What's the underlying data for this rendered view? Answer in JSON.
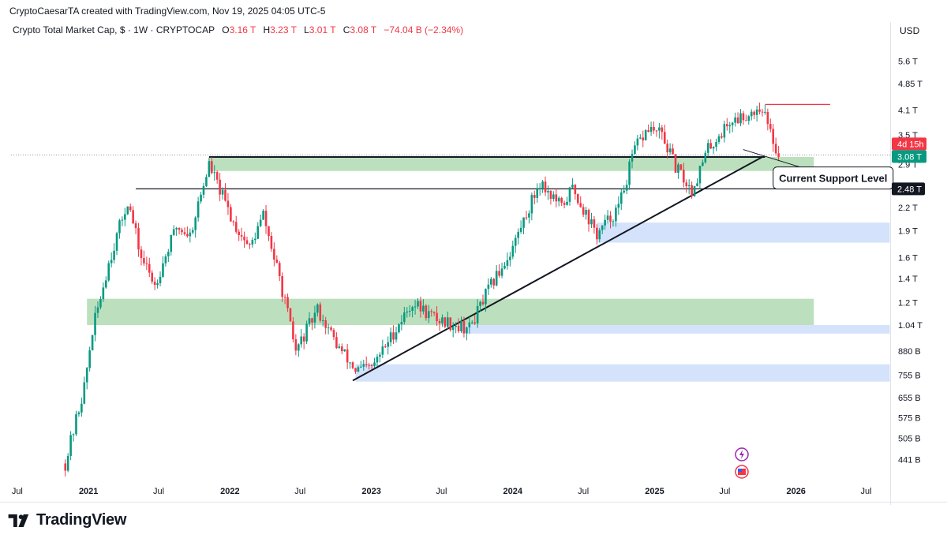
{
  "header": {
    "attribution": "CryptoCaesarTA created with TradingView.com, Nov 19, 2025 04:05 UTC-5"
  },
  "legend": {
    "symbol": "Crypto Total Market Cap, $ · 1W · CRYPTOCAP",
    "open_label": "O",
    "open": "3.16 T",
    "high_label": "H",
    "high": "3.23 T",
    "low_label": "L",
    "low": "3.01 T",
    "close_label": "C",
    "close": "3.08 T",
    "change": "−74.04 B (−2.34%)"
  },
  "currency": "USD",
  "brand": {
    "name": "TradingView"
  },
  "colors": {
    "up": "#089981",
    "down": "#f23645",
    "support": "#a5d6a7",
    "blue_zone": "#cfe0fb"
  },
  "chart_data": {
    "type": "candlestick",
    "scale": "log",
    "y_unit": "USD",
    "ylim": [
      380000000000,
      6500000000000
    ],
    "xlim": [
      "2020-06-15",
      "2026-09-01"
    ],
    "y_ticks": [
      {
        "label": "5.6 T",
        "value": 5600000000000
      },
      {
        "label": "4.85 T",
        "value": 4850000000000
      },
      {
        "label": "4.1 T",
        "value": 4100000000000
      },
      {
        "label": "3.5 T",
        "value": 3500000000000
      },
      {
        "label": "2.9 T",
        "value": 2900000000000
      },
      {
        "label": "2.2 T",
        "value": 2200000000000
      },
      {
        "label": "1.9 T",
        "value": 1900000000000
      },
      {
        "label": "1.6 T",
        "value": 1600000000000
      },
      {
        "label": "1.4 T",
        "value": 1400000000000
      },
      {
        "label": "1.2 T",
        "value": 1200000000000
      },
      {
        "label": "1.04 T",
        "value": 1040000000000
      },
      {
        "label": "880 B",
        "value": 880000000000
      },
      {
        "label": "755 B",
        "value": 755000000000
      },
      {
        "label": "655 B",
        "value": 655000000000
      },
      {
        "label": "575 B",
        "value": 575000000000
      },
      {
        "label": "505 B",
        "value": 505000000000
      },
      {
        "label": "441 B",
        "value": 441000000000
      }
    ],
    "x_ticks": [
      {
        "label": "Jul",
        "date": "2020-07-01",
        "bold": false
      },
      {
        "label": "2021",
        "date": "2021-01-01",
        "bold": true
      },
      {
        "label": "Jul",
        "date": "2021-07-01",
        "bold": false
      },
      {
        "label": "2022",
        "date": "2022-01-01",
        "bold": true
      },
      {
        "label": "Jul",
        "date": "2022-07-01",
        "bold": false
      },
      {
        "label": "2023",
        "date": "2023-01-01",
        "bold": true
      },
      {
        "label": "Jul",
        "date": "2023-07-01",
        "bold": false
      },
      {
        "label": "2024",
        "date": "2024-01-01",
        "bold": true
      },
      {
        "label": "Jul",
        "date": "2024-07-01",
        "bold": false
      },
      {
        "label": "2025",
        "date": "2025-01-01",
        "bold": true
      },
      {
        "label": "Jul",
        "date": "2025-07-01",
        "bold": false
      },
      {
        "label": "2026",
        "date": "2026-01-01",
        "bold": true
      },
      {
        "label": "Jul",
        "date": "2026-07-01",
        "bold": false
      }
    ],
    "price_path": [
      [
        "2020-11-02",
        430000000000
      ],
      [
        "2020-12-21",
        700000000000
      ],
      [
        "2021-01-11",
        1000000000000
      ],
      [
        "2021-02-22",
        1550000000000
      ],
      [
        "2021-04-12",
        2300000000000
      ],
      [
        "2021-05-17",
        1600000000000
      ],
      [
        "2021-06-21",
        1350000000000
      ],
      [
        "2021-08-16",
        1950000000000
      ],
      [
        "2021-09-20",
        1850000000000
      ],
      [
        "2021-11-08",
        2900000000000
      ],
      [
        "2022-01-10",
        2000000000000
      ],
      [
        "2022-02-21",
        1700000000000
      ],
      [
        "2022-03-28",
        2100000000000
      ],
      [
        "2022-05-16",
        1300000000000
      ],
      [
        "2022-06-20",
        880000000000
      ],
      [
        "2022-08-15",
        1150000000000
      ],
      [
        "2022-10-03",
        920000000000
      ],
      [
        "2022-11-21",
        780000000000
      ],
      [
        "2023-01-02",
        790000000000
      ],
      [
        "2023-03-13",
        1050000000000
      ],
      [
        "2023-04-17",
        1200000000000
      ],
      [
        "2023-06-19",
        1080000000000
      ],
      [
        "2023-09-11",
        1020000000000
      ],
      [
        "2023-10-30",
        1300000000000
      ],
      [
        "2023-12-25",
        1650000000000
      ],
      [
        "2024-03-11",
        2600000000000
      ],
      [
        "2024-05-06",
        2200000000000
      ],
      [
        "2024-06-03",
        2500000000000
      ],
      [
        "2024-08-05",
        1850000000000
      ],
      [
        "2024-09-30",
        2200000000000
      ],
      [
        "2024-11-11",
        3200000000000
      ],
      [
        "2024-12-16",
        3650000000000
      ],
      [
        "2025-01-20",
        3500000000000
      ],
      [
        "2025-02-24",
        2850000000000
      ],
      [
        "2025-04-07",
        2450000000000
      ],
      [
        "2025-05-19",
        3200000000000
      ],
      [
        "2025-07-14",
        3800000000000
      ],
      [
        "2025-08-18",
        3950000000000
      ],
      [
        "2025-10-06",
        4200000000000
      ],
      [
        "2025-10-20",
        3700000000000
      ],
      [
        "2025-11-17",
        3080000000000
      ]
    ],
    "levels": [
      {
        "name": "black-level",
        "value": 3040000000000,
        "from": "2021-11-08",
        "to": "2025-10-13"
      },
      {
        "name": "level-2.48T",
        "value": 2480000000000,
        "from": "2021-05-03",
        "to": "2026-08-31",
        "tag": "2.48 T"
      },
      {
        "name": "red-level",
        "value": 4250000000000,
        "from": "2025-10-13",
        "to": "2026-03-30"
      }
    ],
    "zones": [
      {
        "name": "support-zone-top",
        "color": "green",
        "top": 3040000000000,
        "bottom": 2780000000000,
        "from": "2021-11-08",
        "to": "2026-02-16"
      },
      {
        "name": "support-zone-mid",
        "color": "green",
        "top": 1230000000000,
        "bottom": 1040000000000,
        "from": "2020-12-28",
        "to": "2026-02-16"
      },
      {
        "name": "blue-zone-upper",
        "color": "blue",
        "top": 2000000000000,
        "bottom": 1760000000000,
        "from": "2024-08-05",
        "to": "2026-08-31"
      },
      {
        "name": "blue-zone-mid",
        "color": "blue",
        "top": 1040000000000,
        "bottom": 985000000000,
        "from": "2023-08-21",
        "to": "2026-08-31"
      },
      {
        "name": "blue-zone-low",
        "color": "blue",
        "top": 810000000000,
        "bottom": 725000000000,
        "from": "2022-11-21",
        "to": "2026-08-31"
      }
    ],
    "trendline": [
      [
        "2022-11-14",
        730000000000
      ],
      [
        "2025-10-06",
        3040000000000
      ]
    ],
    "current_price": {
      "label": "3.08 T",
      "value": 3080000000000,
      "countdown": "4d 15h"
    },
    "annotation": {
      "text": "Current Support Level",
      "date": "2025-11-03",
      "value": 3000000000000
    }
  }
}
